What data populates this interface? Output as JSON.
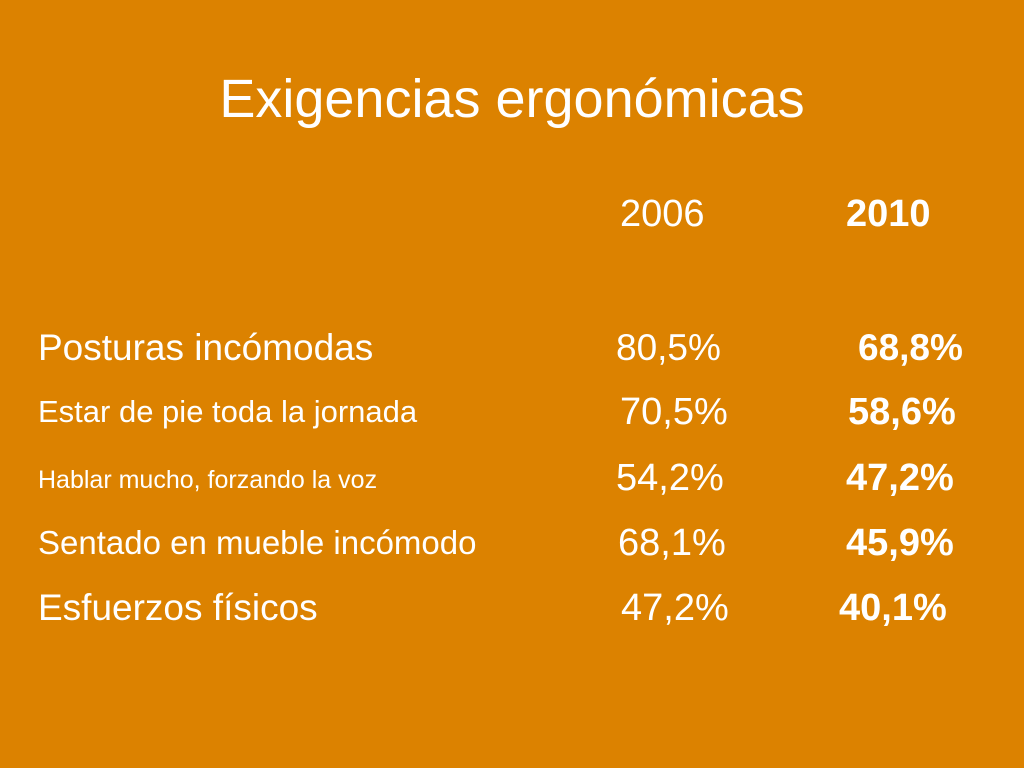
{
  "slide": {
    "title": "Exigencias ergonómicas",
    "background_color": "#DC8200",
    "text_color": "#FFFFFF"
  },
  "table": {
    "columns": [
      "2006",
      "2010"
    ],
    "rows": [
      {
        "label": "Posturas incómodas",
        "v2006": "80,5%",
        "v2010": "68,8%"
      },
      {
        "label": "Estar de pie toda la jornada",
        "v2006": "70,5%",
        "v2010": "58,6%"
      },
      {
        "label": "Hablar mucho, forzando la voz",
        "v2006": "54,2%",
        "v2010": "47,2%"
      },
      {
        "label": "Sentado en mueble incómodo",
        "v2006": "68,1%",
        "v2010": "45,9%"
      },
      {
        "label": "Esfuerzos físicos",
        "v2006": "47,2%",
        "v2010": "40,1%"
      }
    ]
  }
}
